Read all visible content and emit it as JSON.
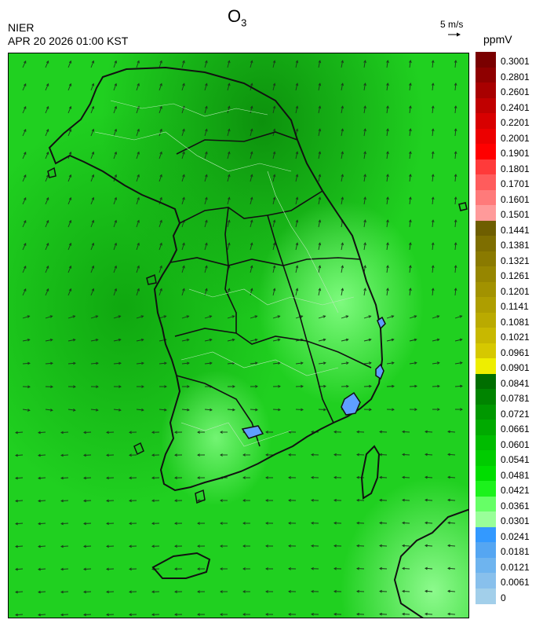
{
  "header": {
    "org": "NIER",
    "timestamp": "APR 20 2026 01:00 KST",
    "title_main": "O",
    "title_sub": "3",
    "wind_scale_label": "5 m/s",
    "unit": "ppmV"
  },
  "colorbar": {
    "labels": [
      "0.3001",
      "0.2801",
      "0.2601",
      "0.2401",
      "0.2201",
      "0.2001",
      "0.1901",
      "0.1801",
      "0.1701",
      "0.1601",
      "0.1501",
      "0.1441",
      "0.1381",
      "0.1321",
      "0.1261",
      "0.1201",
      "0.1141",
      "0.1081",
      "0.1021",
      "0.0961",
      "0.0901",
      "0.0841",
      "0.0781",
      "0.0721",
      "0.0661",
      "0.0601",
      "0.0541",
      "0.0481",
      "0.0421",
      "0.0361",
      "0.0301",
      "0.0241",
      "0.0181",
      "0.0121",
      "0.0061",
      "0"
    ],
    "colors": [
      "#7a0000",
      "#8f0000",
      "#a80000",
      "#c00000",
      "#d80000",
      "#ec0000",
      "#ff0000",
      "#ff3a3a",
      "#ff5c5c",
      "#ff7a7a",
      "#ff9a9a",
      "#6e5e00",
      "#7e6e00",
      "#8a7a00",
      "#968600",
      "#a29200",
      "#ae9e00",
      "#baaa00",
      "#c8b800",
      "#d6c800",
      "#eeee00",
      "#006e00",
      "#008400",
      "#009800",
      "#00aa00",
      "#00bc00",
      "#00cc00",
      "#00dd00",
      "#1cf21c",
      "#66ff66",
      "#99ff99",
      "#3399ff",
      "#55a6f2",
      "#6eb4ef",
      "#88c0ec",
      "#a2cfea"
    ]
  },
  "map": {
    "background_color": "#1fcf1f",
    "coast_color": "#111111",
    "low_ozone_color": "#5f9fff"
  }
}
